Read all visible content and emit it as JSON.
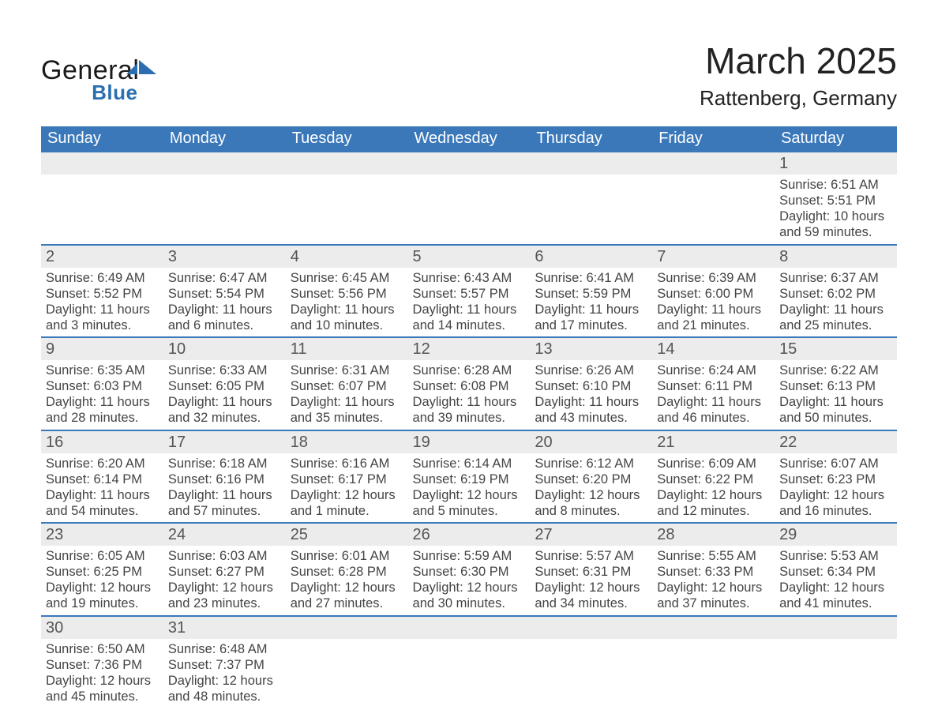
{
  "brand": {
    "name_part1": "General",
    "name_part2": "Blue",
    "logo_dark_color": "#1a1a1a",
    "logo_blue_color": "#2b6fb0"
  },
  "title": "March 2025",
  "subtitle": "Rattenberg, Germany",
  "colors": {
    "header_bg": "#3a78b9",
    "row_separator": "#3a78b9",
    "daynum_bg": "#ececec",
    "page_bg": "#ffffff",
    "text": "#333333"
  },
  "typography": {
    "title_fontsize_pt": 34,
    "subtitle_fontsize_pt": 19,
    "header_fontsize_pt": 15,
    "daynum_fontsize_pt": 15,
    "body_fontsize_pt": 12,
    "font_family": "Arial"
  },
  "calendar": {
    "type": "table",
    "columns": [
      "Sunday",
      "Monday",
      "Tuesday",
      "Wednesday",
      "Thursday",
      "Friday",
      "Saturday"
    ],
    "weeks": [
      [
        null,
        null,
        null,
        null,
        null,
        null,
        {
          "day": "1",
          "sunrise": "Sunrise: 6:51 AM",
          "sunset": "Sunset: 5:51 PM",
          "daylight": "Daylight: 10 hours and 59 minutes."
        }
      ],
      [
        {
          "day": "2",
          "sunrise": "Sunrise: 6:49 AM",
          "sunset": "Sunset: 5:52 PM",
          "daylight": "Daylight: 11 hours and 3 minutes."
        },
        {
          "day": "3",
          "sunrise": "Sunrise: 6:47 AM",
          "sunset": "Sunset: 5:54 PM",
          "daylight": "Daylight: 11 hours and 6 minutes."
        },
        {
          "day": "4",
          "sunrise": "Sunrise: 6:45 AM",
          "sunset": "Sunset: 5:56 PM",
          "daylight": "Daylight: 11 hours and 10 minutes."
        },
        {
          "day": "5",
          "sunrise": "Sunrise: 6:43 AM",
          "sunset": "Sunset: 5:57 PM",
          "daylight": "Daylight: 11 hours and 14 minutes."
        },
        {
          "day": "6",
          "sunrise": "Sunrise: 6:41 AM",
          "sunset": "Sunset: 5:59 PM",
          "daylight": "Daylight: 11 hours and 17 minutes."
        },
        {
          "day": "7",
          "sunrise": "Sunrise: 6:39 AM",
          "sunset": "Sunset: 6:00 PM",
          "daylight": "Daylight: 11 hours and 21 minutes."
        },
        {
          "day": "8",
          "sunrise": "Sunrise: 6:37 AM",
          "sunset": "Sunset: 6:02 PM",
          "daylight": "Daylight: 11 hours and 25 minutes."
        }
      ],
      [
        {
          "day": "9",
          "sunrise": "Sunrise: 6:35 AM",
          "sunset": "Sunset: 6:03 PM",
          "daylight": "Daylight: 11 hours and 28 minutes."
        },
        {
          "day": "10",
          "sunrise": "Sunrise: 6:33 AM",
          "sunset": "Sunset: 6:05 PM",
          "daylight": "Daylight: 11 hours and 32 minutes."
        },
        {
          "day": "11",
          "sunrise": "Sunrise: 6:31 AM",
          "sunset": "Sunset: 6:07 PM",
          "daylight": "Daylight: 11 hours and 35 minutes."
        },
        {
          "day": "12",
          "sunrise": "Sunrise: 6:28 AM",
          "sunset": "Sunset: 6:08 PM",
          "daylight": "Daylight: 11 hours and 39 minutes."
        },
        {
          "day": "13",
          "sunrise": "Sunrise: 6:26 AM",
          "sunset": "Sunset: 6:10 PM",
          "daylight": "Daylight: 11 hours and 43 minutes."
        },
        {
          "day": "14",
          "sunrise": "Sunrise: 6:24 AM",
          "sunset": "Sunset: 6:11 PM",
          "daylight": "Daylight: 11 hours and 46 minutes."
        },
        {
          "day": "15",
          "sunrise": "Sunrise: 6:22 AM",
          "sunset": "Sunset: 6:13 PM",
          "daylight": "Daylight: 11 hours and 50 minutes."
        }
      ],
      [
        {
          "day": "16",
          "sunrise": "Sunrise: 6:20 AM",
          "sunset": "Sunset: 6:14 PM",
          "daylight": "Daylight: 11 hours and 54 minutes."
        },
        {
          "day": "17",
          "sunrise": "Sunrise: 6:18 AM",
          "sunset": "Sunset: 6:16 PM",
          "daylight": "Daylight: 11 hours and 57 minutes."
        },
        {
          "day": "18",
          "sunrise": "Sunrise: 6:16 AM",
          "sunset": "Sunset: 6:17 PM",
          "daylight": "Daylight: 12 hours and 1 minute."
        },
        {
          "day": "19",
          "sunrise": "Sunrise: 6:14 AM",
          "sunset": "Sunset: 6:19 PM",
          "daylight": "Daylight: 12 hours and 5 minutes."
        },
        {
          "day": "20",
          "sunrise": "Sunrise: 6:12 AM",
          "sunset": "Sunset: 6:20 PM",
          "daylight": "Daylight: 12 hours and 8 minutes."
        },
        {
          "day": "21",
          "sunrise": "Sunrise: 6:09 AM",
          "sunset": "Sunset: 6:22 PM",
          "daylight": "Daylight: 12 hours and 12 minutes."
        },
        {
          "day": "22",
          "sunrise": "Sunrise: 6:07 AM",
          "sunset": "Sunset: 6:23 PM",
          "daylight": "Daylight: 12 hours and 16 minutes."
        }
      ],
      [
        {
          "day": "23",
          "sunrise": "Sunrise: 6:05 AM",
          "sunset": "Sunset: 6:25 PM",
          "daylight": "Daylight: 12 hours and 19 minutes."
        },
        {
          "day": "24",
          "sunrise": "Sunrise: 6:03 AM",
          "sunset": "Sunset: 6:27 PM",
          "daylight": "Daylight: 12 hours and 23 minutes."
        },
        {
          "day": "25",
          "sunrise": "Sunrise: 6:01 AM",
          "sunset": "Sunset: 6:28 PM",
          "daylight": "Daylight: 12 hours and 27 minutes."
        },
        {
          "day": "26",
          "sunrise": "Sunrise: 5:59 AM",
          "sunset": "Sunset: 6:30 PM",
          "daylight": "Daylight: 12 hours and 30 minutes."
        },
        {
          "day": "27",
          "sunrise": "Sunrise: 5:57 AM",
          "sunset": "Sunset: 6:31 PM",
          "daylight": "Daylight: 12 hours and 34 minutes."
        },
        {
          "day": "28",
          "sunrise": "Sunrise: 5:55 AM",
          "sunset": "Sunset: 6:33 PM",
          "daylight": "Daylight: 12 hours and 37 minutes."
        },
        {
          "day": "29",
          "sunrise": "Sunrise: 5:53 AM",
          "sunset": "Sunset: 6:34 PM",
          "daylight": "Daylight: 12 hours and 41 minutes."
        }
      ],
      [
        {
          "day": "30",
          "sunrise": "Sunrise: 6:50 AM",
          "sunset": "Sunset: 7:36 PM",
          "daylight": "Daylight: 12 hours and 45 minutes."
        },
        {
          "day": "31",
          "sunrise": "Sunrise: 6:48 AM",
          "sunset": "Sunset: 7:37 PM",
          "daylight": "Daylight: 12 hours and 48 minutes."
        },
        null,
        null,
        null,
        null,
        null
      ]
    ]
  }
}
